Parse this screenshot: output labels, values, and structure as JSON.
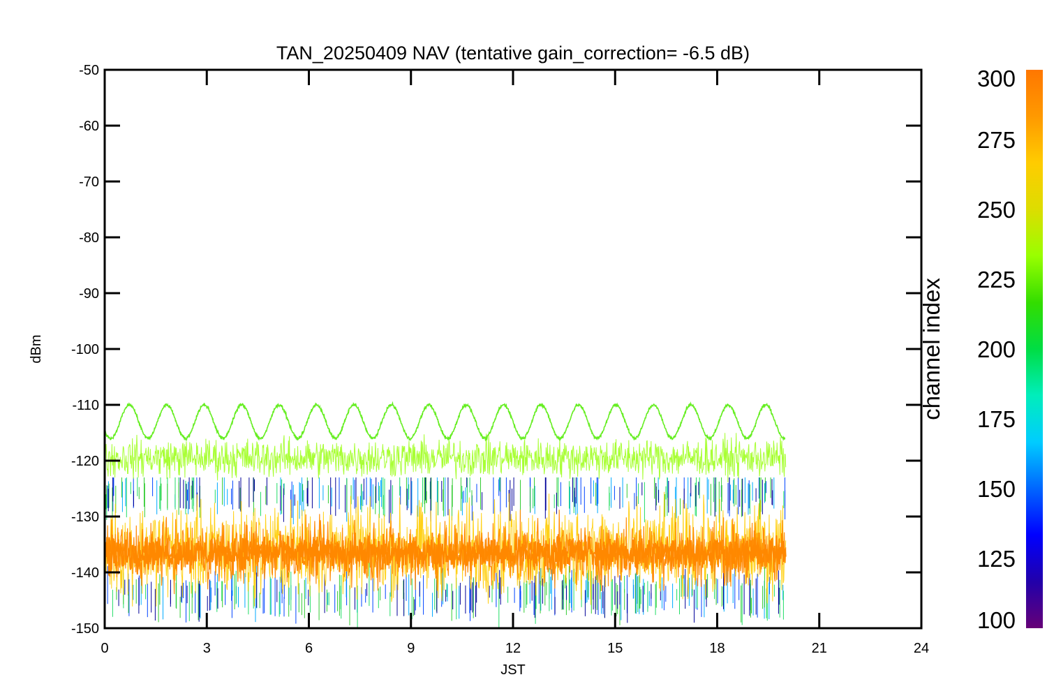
{
  "chart_data": {
    "type": "line",
    "title": "TAN_20250409 NAV (tentative gain_correction= -6.5 dB)",
    "xlabel": "JST",
    "ylabel": "dBm",
    "xlim": [
      0,
      24
    ],
    "ylim": [
      -150,
      -50
    ],
    "x_ticks": [
      0,
      3,
      6,
      9,
      12,
      15,
      18,
      21,
      24
    ],
    "y_ticks": [
      -50,
      -60,
      -70,
      -80,
      -90,
      -100,
      -110,
      -120,
      -130,
      -140,
      -150
    ],
    "x_tick_labels": [
      "0",
      "3",
      "6",
      "9",
      "12",
      "15",
      "18",
      "21",
      "24"
    ],
    "y_tick_labels": [
      "-50",
      "-60",
      "-70",
      "-80",
      "-90",
      "-100",
      "-110",
      "-120",
      "-130",
      "-140",
      "-150"
    ],
    "data_x_range": [
      0,
      20
    ],
    "series_description_values": {
      "oscillating_channel": {
        "color": "#66ee22",
        "center_dBm": -113,
        "amplitude_dBm": 3,
        "period_hours": 1.1
      },
      "upper_band": {
        "color": "#99ff11",
        "center_dBm": -119.5,
        "spread_dBm": 5
      },
      "main_band": {
        "color": "#ff8800",
        "center_dBm": -136.5,
        "spread_dBm": 8
      },
      "yellow_band": {
        "color": "#ffcc00",
        "center_dBm": -136,
        "spread_dBm": 12
      },
      "scattered_low_channels": {
        "colors": [
          "#0044ff",
          "#00aaff",
          "#22dd66",
          "#33cc33",
          "#000099"
        ],
        "range_dBm": [
          -150,
          -123
        ]
      }
    },
    "grid": false,
    "colorbar": {
      "label": "channel index",
      "min": 100,
      "max": 300,
      "ticks": [
        300,
        275,
        250,
        225,
        200,
        175,
        150,
        125,
        100
      ],
      "tick_labels": [
        "300",
        "275",
        "250",
        "225",
        "200",
        "175",
        "150",
        "125",
        "100"
      ],
      "colormap": [
        "#660077",
        "#2200aa",
        "#0000ff",
        "#0066ff",
        "#00ccff",
        "#00eebb",
        "#00dd44",
        "#33dd00",
        "#99ff00",
        "#dddd00",
        "#ffcc00",
        "#ff9900",
        "#ff7700"
      ]
    }
  }
}
